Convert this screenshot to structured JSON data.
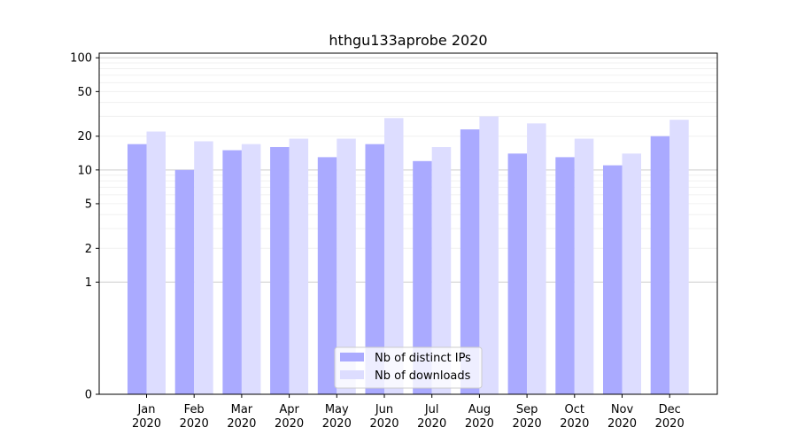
{
  "chart_data": {
    "type": "bar",
    "title": "hthgu133aprobe 2020",
    "xlabel": "",
    "ylabel": "",
    "yscale": "symlog",
    "ylim": [
      0,
      110
    ],
    "yticks": [
      {
        "value": 0,
        "label": "0"
      },
      {
        "value": 1,
        "label": "1"
      },
      {
        "value": 2,
        "label": "2"
      },
      {
        "value": 5,
        "label": "5"
      },
      {
        "value": 10,
        "label": "10"
      },
      {
        "value": 20,
        "label": "20"
      },
      {
        "value": 50,
        "label": "50"
      },
      {
        "value": 100,
        "label": "100"
      }
    ],
    "grid": true,
    "legend_position": "lower-center",
    "categories": [
      {
        "month": "Jan",
        "year": "2020"
      },
      {
        "month": "Feb",
        "year": "2020"
      },
      {
        "month": "Mar",
        "year": "2020"
      },
      {
        "month": "Apr",
        "year": "2020"
      },
      {
        "month": "May",
        "year": "2020"
      },
      {
        "month": "Jun",
        "year": "2020"
      },
      {
        "month": "Jul",
        "year": "2020"
      },
      {
        "month": "Aug",
        "year": "2020"
      },
      {
        "month": "Sep",
        "year": "2020"
      },
      {
        "month": "Oct",
        "year": "2020"
      },
      {
        "month": "Nov",
        "year": "2020"
      },
      {
        "month": "Dec",
        "year": "2020"
      }
    ],
    "series": [
      {
        "name": "Nb of distinct IPs",
        "color": "#aaaaff",
        "values": [
          17,
          10,
          15,
          16,
          13,
          17,
          12,
          23,
          14,
          13,
          11,
          20
        ]
      },
      {
        "name": "Nb of downloads",
        "color": "#ddddff",
        "values": [
          22,
          18,
          17,
          19,
          19,
          29,
          16,
          30,
          26,
          19,
          14,
          28
        ]
      }
    ]
  }
}
